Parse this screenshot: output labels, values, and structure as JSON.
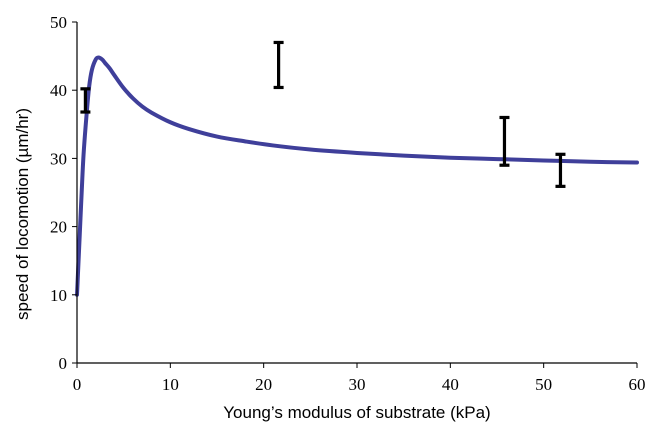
{
  "chart_data": {
    "type": "line",
    "title": "",
    "xlabel": "Young’s modulus of substrate (kPa)",
    "ylabel": "speed of locomotion (µm/hr)",
    "xlim": [
      0,
      60
    ],
    "ylim": [
      0,
      50
    ],
    "x_ticks": [
      0,
      10,
      20,
      30,
      40,
      50,
      60
    ],
    "y_ticks": [
      0,
      10,
      20,
      30,
      40,
      50
    ],
    "grid": false,
    "legend": "none",
    "series": [
      {
        "kind": "line",
        "color": "#3f3f9a",
        "x": [
          0,
          0.1,
          0.2,
          0.3,
          0.5,
          0.7,
          1.0,
          1.3,
          1.6,
          2.0,
          2.3,
          2.7,
          3.0,
          3.5,
          4.0,
          5.0,
          6.0,
          7.0,
          8.0,
          10.0,
          12.0,
          15.0,
          18.0,
          21.0,
          25.0,
          30.0,
          35.0,
          40.0,
          45.0,
          50.0,
          55.0,
          60.0
        ],
        "y": [
          10.0,
          13.0,
          16.0,
          19.0,
          25.0,
          30.5,
          36.0,
          40.5,
          43.0,
          44.5,
          44.8,
          44.5,
          44.0,
          43.2,
          42.2,
          40.3,
          38.8,
          37.6,
          36.7,
          35.3,
          34.3,
          33.2,
          32.5,
          31.9,
          31.3,
          30.8,
          30.4,
          30.1,
          29.9,
          29.7,
          29.5,
          29.4
        ]
      },
      {
        "kind": "errorbar",
        "color": "#000000",
        "points": [
          {
            "x": 0.9,
            "y": 38.5,
            "low": 36.8,
            "high": 40.2
          },
          {
            "x": 21.6,
            "y": 43.7,
            "low": 40.4,
            "high": 47.0
          },
          {
            "x": 45.8,
            "y": 32.5,
            "low": 29.0,
            "high": 36.0
          },
          {
            "x": 51.8,
            "y": 28.3,
            "low": 25.9,
            "high": 30.6
          }
        ]
      }
    ]
  }
}
